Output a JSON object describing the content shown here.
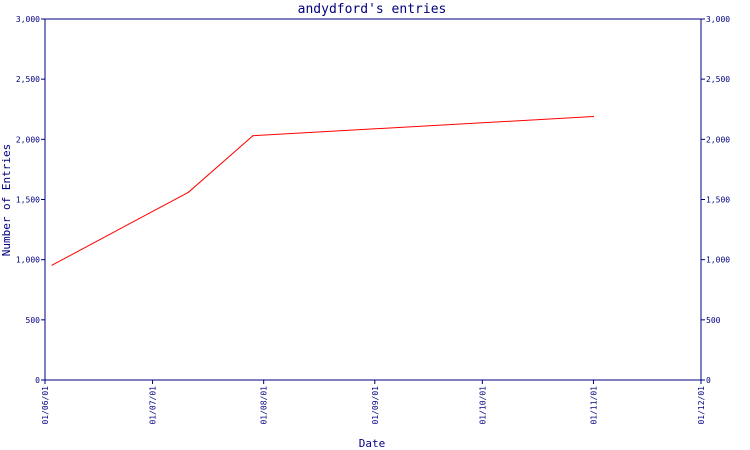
{
  "chart_data": {
    "type": "line",
    "title": "andydford's entries",
    "xlabel": "Date",
    "ylabel": "Number of Entries",
    "x_tick_labels": [
      "01/06/01",
      "01/07/01",
      "01/08/01",
      "01/09/01",
      "01/10/01",
      "01/11/01",
      "01/12/01"
    ],
    "x_tick_dates": [
      "2001-06-01",
      "2001-07-01",
      "2001-08-01",
      "2001-09-01",
      "2001-10-01",
      "2001-11-01",
      "2001-12-01"
    ],
    "y_tick_labels": [
      "0",
      "500",
      "1,000",
      "1,500",
      "2,000",
      "2,500",
      "3,000"
    ],
    "y_ticks": [
      0,
      500,
      1000,
      1500,
      2000,
      2500,
      3000
    ],
    "ylim": [
      0,
      3000
    ],
    "xlim": [
      "2001-06-01",
      "2001-12-01"
    ],
    "grid": false,
    "colors": {
      "axis": "#000080",
      "line": "#ff0000"
    },
    "series": [
      {
        "values": [
          {
            "x": "2001-06-03",
            "y": 955
          },
          {
            "x": "2001-07-11",
            "y": 1560
          },
          {
            "x": "2001-07-29",
            "y": 2030
          },
          {
            "x": "2001-11-01",
            "y": 2190
          }
        ]
      }
    ]
  }
}
